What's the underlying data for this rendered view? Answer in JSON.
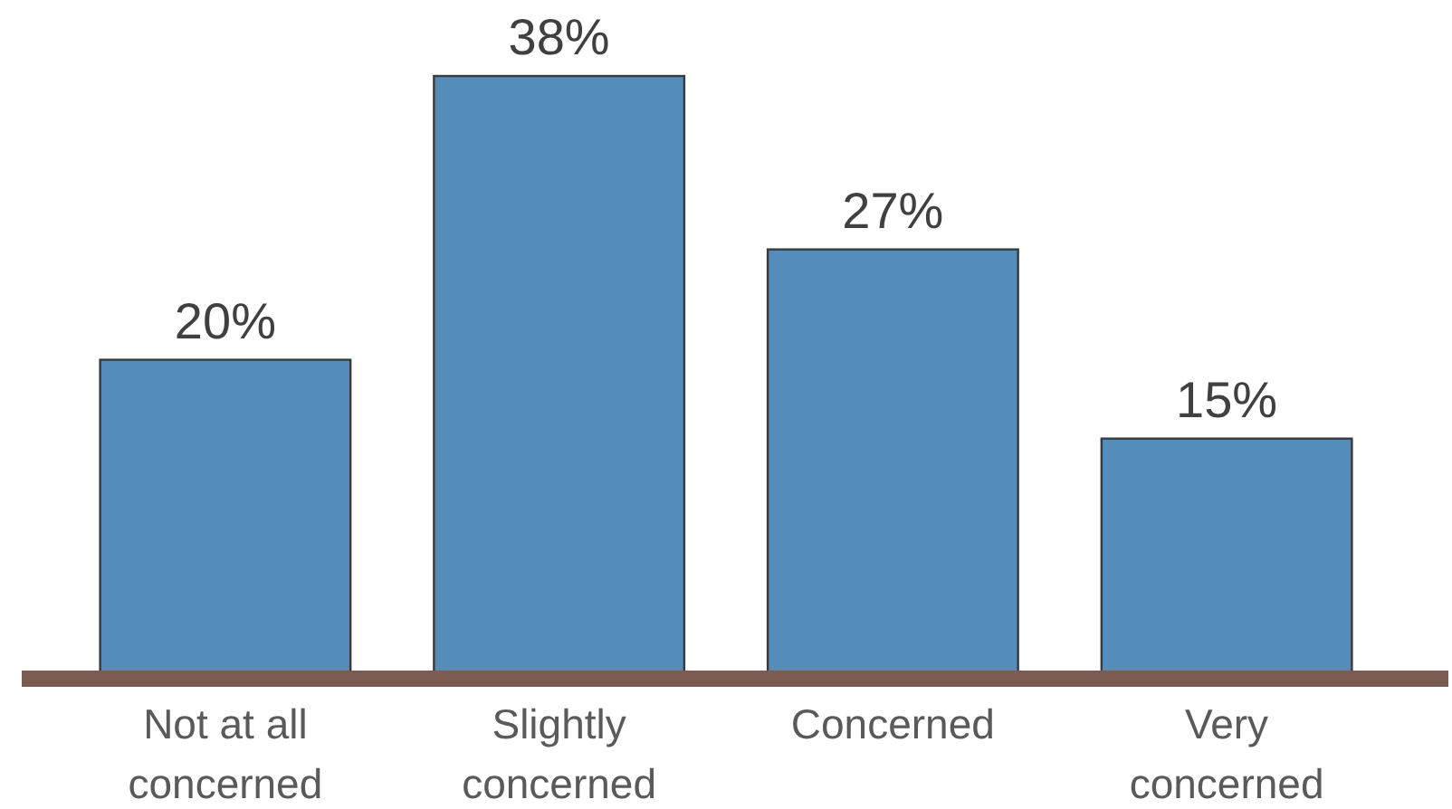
{
  "chart_data": {
    "type": "bar",
    "categories": [
      "Not at all concerned",
      "Slightly concerned",
      "Concerned",
      "Very concerned"
    ],
    "values": [
      20,
      38,
      27,
      15
    ],
    "value_labels": [
      "20%",
      "38%",
      "27%",
      "15%"
    ],
    "color": "#558cba"
  }
}
